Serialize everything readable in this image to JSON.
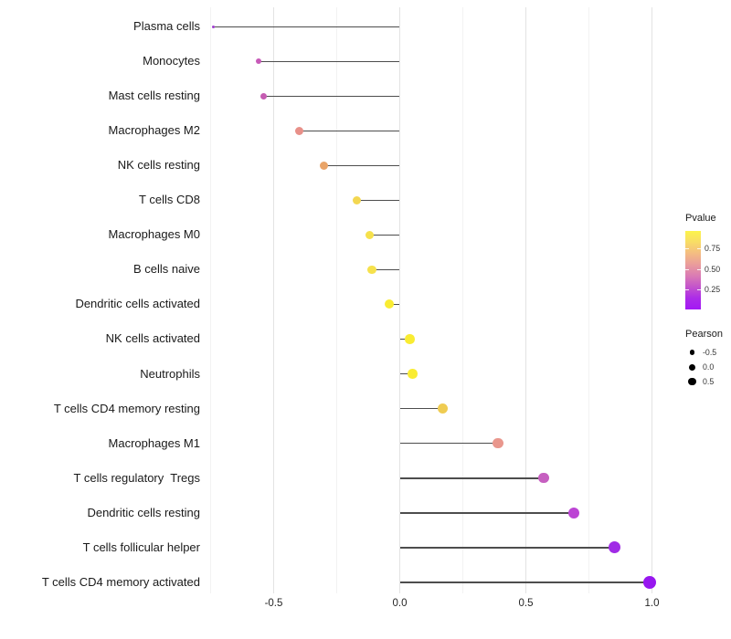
{
  "chart_data": {
    "type": "lollipop",
    "title": "",
    "xlabel": "",
    "ylabel": "",
    "x_axis": {
      "ticks": [
        -0.5,
        0.0,
        0.5,
        1.0
      ],
      "tick_labels": [
        "-0.5",
        "0.0",
        "0.5",
        "1.0"
      ],
      "minor_ticks": [
        -0.75,
        -0.25,
        0.25,
        0.75
      ],
      "range": [
        -0.79,
        1.06
      ],
      "grid": "vertical-only"
    },
    "baseline_x": 0.0,
    "points": [
      {
        "label": "Plasma cells",
        "pearson": -0.74,
        "pvalue_est": 0.12,
        "color": "#a13fd0"
      },
      {
        "label": "Monocytes",
        "pearson": -0.56,
        "pvalue_est": 0.25,
        "color": "#c75ab8"
      },
      {
        "label": "Mast cells resting",
        "pearson": -0.54,
        "pvalue_est": 0.26,
        "color": "#c55cb2"
      },
      {
        "label": "Macrophages M2",
        "pearson": -0.4,
        "pvalue_est": 0.52,
        "color": "#e89089"
      },
      {
        "label": "NK cells resting",
        "pearson": -0.3,
        "pvalue_est": 0.63,
        "color": "#e9a468"
      },
      {
        "label": "T cells CD8",
        "pearson": -0.17,
        "pvalue_est": 0.8,
        "color": "#f3d751"
      },
      {
        "label": "Macrophages M0",
        "pearson": -0.12,
        "pvalue_est": 0.85,
        "color": "#f6e14c"
      },
      {
        "label": "B cells naive",
        "pearson": -0.11,
        "pvalue_est": 0.85,
        "color": "#f6e14c"
      },
      {
        "label": "Dendritic cells activated",
        "pearson": -0.04,
        "pvalue_est": 0.93,
        "color": "#f9ec32"
      },
      {
        "label": "NK cells activated",
        "pearson": 0.04,
        "pvalue_est": 0.93,
        "color": "#f9ec32"
      },
      {
        "label": "Neutrophils",
        "pearson": 0.05,
        "pvalue_est": 0.93,
        "color": "#f9ec32"
      },
      {
        "label": "T cells CD4 memory resting",
        "pearson": 0.17,
        "pvalue_est": 0.72,
        "color": "#efcc52"
      },
      {
        "label": "Macrophages M1",
        "pearson": 0.39,
        "pvalue_est": 0.55,
        "color": "#e9978d"
      },
      {
        "label": "T cells regulatory  Tregs",
        "pearson": 0.57,
        "pvalue_est": 0.27,
        "color": "#c65fc0"
      },
      {
        "label": "Dendritic cells resting",
        "pearson": 0.69,
        "pvalue_est": 0.17,
        "color": "#bc44d4"
      },
      {
        "label": "T cells follicular helper",
        "pearson": 0.85,
        "pvalue_est": 0.08,
        "color": "#a02be6"
      },
      {
        "label": "T cells CD4 memory activated",
        "pearson": 0.99,
        "pvalue_est": 0.02,
        "color": "#9717ef"
      }
    ],
    "legend_position": "right"
  },
  "legend_pvalue": {
    "title": "Pvalue",
    "tick_labels": [
      "0.75",
      "0.50",
      "0.25"
    ],
    "gradient_stops": [
      "#fcf44c",
      "#f8dc66",
      "#f4bc82",
      "#ea9c9c",
      "#da7bb4",
      "#c353cc",
      "#ac2be8",
      "#a318f5"
    ]
  },
  "legend_pearson": {
    "title": "Pearson",
    "entries": [
      {
        "label": "-0.5"
      },
      {
        "label": "0.0"
      },
      {
        "label": "0.5"
      }
    ]
  }
}
